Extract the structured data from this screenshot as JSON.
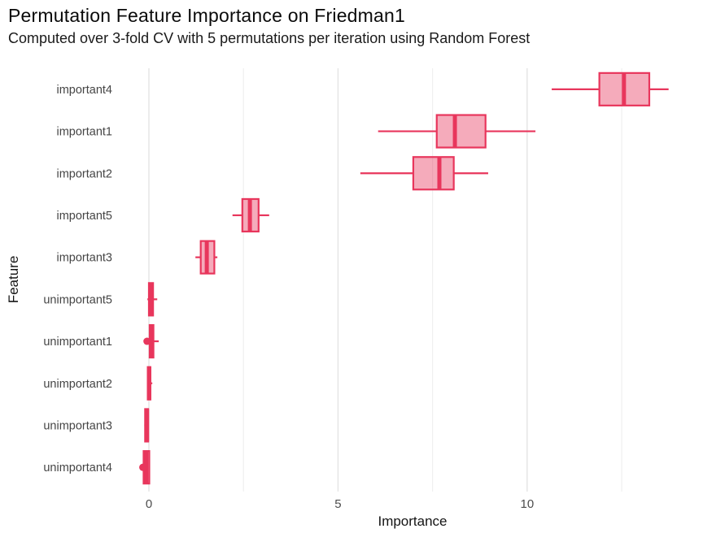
{
  "header": {
    "title": "Permutation Feature Importance on Friedman1",
    "subtitle": "Computed over 3-fold CV with 5 permutations per iteration using Random Forest"
  },
  "chart_data": {
    "type": "boxplot",
    "orientation": "horizontal",
    "title": "Permutation Feature Importance on Friedman1",
    "subtitle": "Computed over 3-fold CV with 5 permutations per iteration using Random Forest",
    "xlabel": "Importance",
    "ylabel": "Feature",
    "xlim": [
      -0.71,
      14.65
    ],
    "x_major_ticks": [
      0,
      5,
      10
    ],
    "x_major_tick_labels": [
      "0",
      "5",
      "10"
    ],
    "x_minor_ticks": [
      2.5,
      7.5,
      12.5
    ],
    "grid": "vertical major+minor, no panel border",
    "legend": "none",
    "categories": [
      "important4",
      "important1",
      "important2",
      "important5",
      "important3",
      "unimportant5",
      "unimportant1",
      "unimportant2",
      "unimportant3",
      "unimportant4"
    ],
    "series": [
      {
        "name": "important4",
        "whisker_lo": 10.65,
        "q1": 11.91,
        "median": 12.56,
        "q3": 13.23,
        "whisker_hi": 13.74,
        "outliers": []
      },
      {
        "name": "important1",
        "whisker_lo": 6.06,
        "q1": 7.61,
        "median": 8.09,
        "q3": 8.9,
        "whisker_hi": 10.22,
        "outliers": []
      },
      {
        "name": "important2",
        "whisker_lo": 5.59,
        "q1": 6.99,
        "median": 7.68,
        "q3": 8.06,
        "whisker_hi": 8.97,
        "outliers": []
      },
      {
        "name": "important5",
        "whisker_lo": 2.21,
        "q1": 2.47,
        "median": 2.67,
        "q3": 2.9,
        "whisker_hi": 3.18,
        "outliers": []
      },
      {
        "name": "important3",
        "whisker_lo": 1.23,
        "q1": 1.37,
        "median": 1.53,
        "q3": 1.73,
        "whisker_hi": 1.81,
        "outliers": []
      },
      {
        "name": "unimportant5",
        "whisker_lo": -0.04,
        "q1": 0.0,
        "median": 0.05,
        "q3": 0.11,
        "whisker_hi": 0.22,
        "outliers": []
      },
      {
        "name": "unimportant1",
        "whisker_lo": -0.1,
        "q1": 0.02,
        "median": 0.07,
        "q3": 0.12,
        "whisker_hi": 0.26,
        "outliers": [
          -0.05
        ]
      },
      {
        "name": "unimportant2",
        "whisker_lo": -0.04,
        "q1": -0.03,
        "median": 0.01,
        "q3": 0.04,
        "whisker_hi": 0.09,
        "outliers": []
      },
      {
        "name": "unimportant3",
        "whisker_lo": -0.12,
        "q1": -0.1,
        "median": -0.05,
        "q3": -0.02,
        "whisker_hi": 0.0,
        "outliers": []
      },
      {
        "name": "unimportant4",
        "whisker_lo": -0.17,
        "q1": -0.14,
        "median": -0.07,
        "q3": 0.01,
        "whisker_hi": 0.02,
        "outliers": [
          -0.16
        ]
      }
    ],
    "colors": {
      "box_stroke": "#e8365c",
      "box_fill": "#e8365c",
      "box_fill_opacity": 0.42,
      "grid_major": "#e4e4e4",
      "grid_minor": "#f0f0f0",
      "tick_label": "#4d4d4d",
      "category_label": "#454545",
      "background": "#ffffff"
    }
  }
}
